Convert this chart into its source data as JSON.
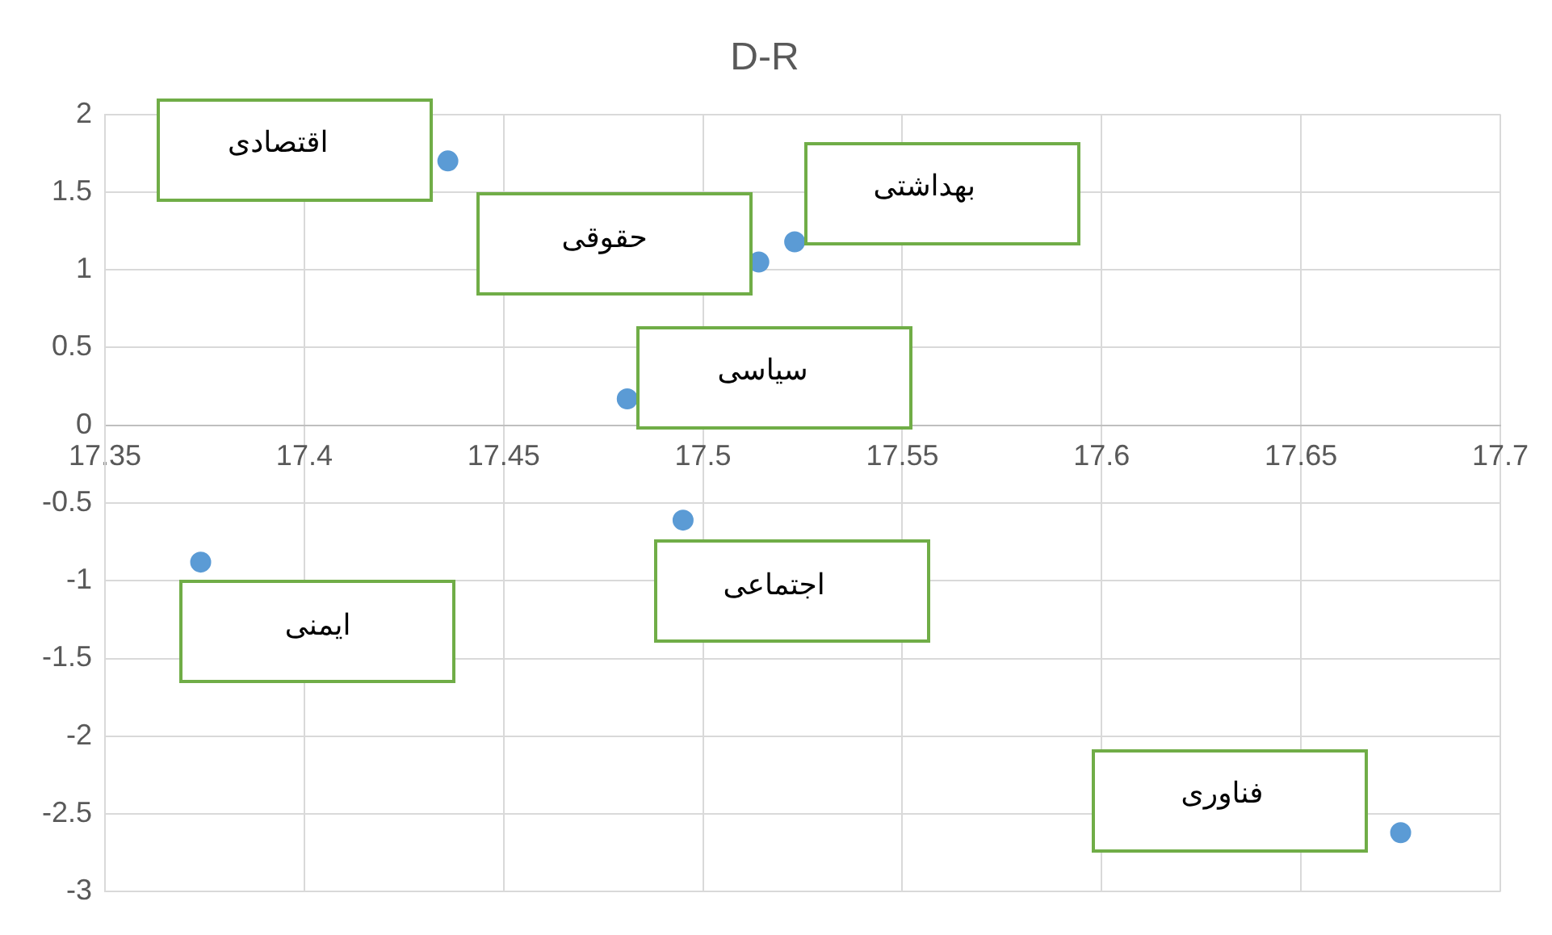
{
  "chart_data": {
    "type": "scatter",
    "title": "D-R",
    "series": [
      {
        "color": "#5b9bd5",
        "x": [
          17.436,
          17.514,
          17.523,
          17.481,
          17.495,
          17.374,
          17.675
        ],
        "values": [
          1.7,
          1.05,
          1.18,
          0.17,
          -0.61,
          -0.88,
          -2.62
        ]
      }
    ],
    "annotations": [
      "اقتصادی",
      "حقوقی",
      "بهداشتی",
      "سیاسی",
      "اجتماعی",
      "ایمنی",
      "فناوری"
    ],
    "xlim": [
      17.35,
      17.7
    ],
    "xticks": [
      17.35,
      17.4,
      17.45,
      17.5,
      17.55,
      17.6,
      17.65,
      17.7
    ],
    "ylim": [
      -3,
      2
    ],
    "yticks": [
      -3,
      -2.5,
      -2,
      -1.5,
      -1,
      -0.5,
      0,
      0.5,
      1,
      1.5,
      2
    ],
    "grid": true,
    "marker": "circle",
    "legend": false
  }
}
